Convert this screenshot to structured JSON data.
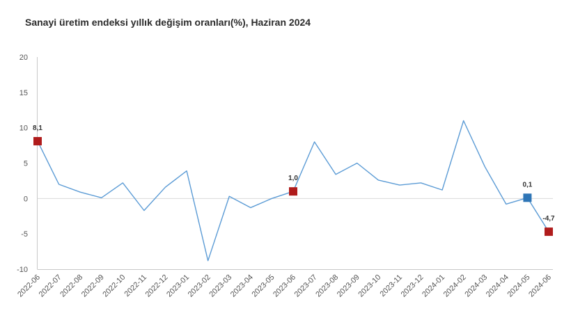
{
  "chart_data": {
    "type": "line",
    "title": "Sanayi üretim endeksi yıllık değişim oranları(%), Haziran 2024",
    "xlabel": "",
    "ylabel": "",
    "ylim": [
      -10,
      20
    ],
    "yticks": [
      "20",
      "15",
      "10",
      "5",
      "0",
      "-5",
      "-10"
    ],
    "ytick_values": [
      20,
      15,
      10,
      5,
      0,
      -5,
      -10
    ],
    "grid": false,
    "categories": [
      "2022-06",
      "2022-07",
      "2022-08",
      "2022-09",
      "2022-10",
      "2022-11",
      "2022-12",
      "2023-01",
      "2023-02",
      "2023-03",
      "2023-04",
      "2023-05",
      "2023-06",
      "2023-07",
      "2023-08",
      "2023-09",
      "2023-10",
      "2023-11",
      "2023-12",
      "2024-01",
      "2024-02",
      "2024-03",
      "2024-04",
      "2024-05",
      "2024-06"
    ],
    "series": [
      {
        "values": [
          8.1,
          2.0,
          0.9,
          0.1,
          2.2,
          -1.7,
          1.6,
          3.9,
          -8.8,
          0.3,
          -1.3,
          0.0,
          1.0,
          8.0,
          3.4,
          5.0,
          2.6,
          1.9,
          2.2,
          1.2,
          11.0,
          4.5,
          -0.8,
          0.1,
          -4.7
        ],
        "color": "#5b9bd5"
      }
    ],
    "highlights": [
      {
        "index": 0,
        "label": "8,1",
        "color": "#b01c1c"
      },
      {
        "index": 12,
        "label": "1,0",
        "color": "#b01c1c"
      },
      {
        "index": 23,
        "label": "0,1",
        "color": "#2e75b6"
      },
      {
        "index": 24,
        "label": "-4,7",
        "color": "#b01c1c"
      }
    ]
  }
}
